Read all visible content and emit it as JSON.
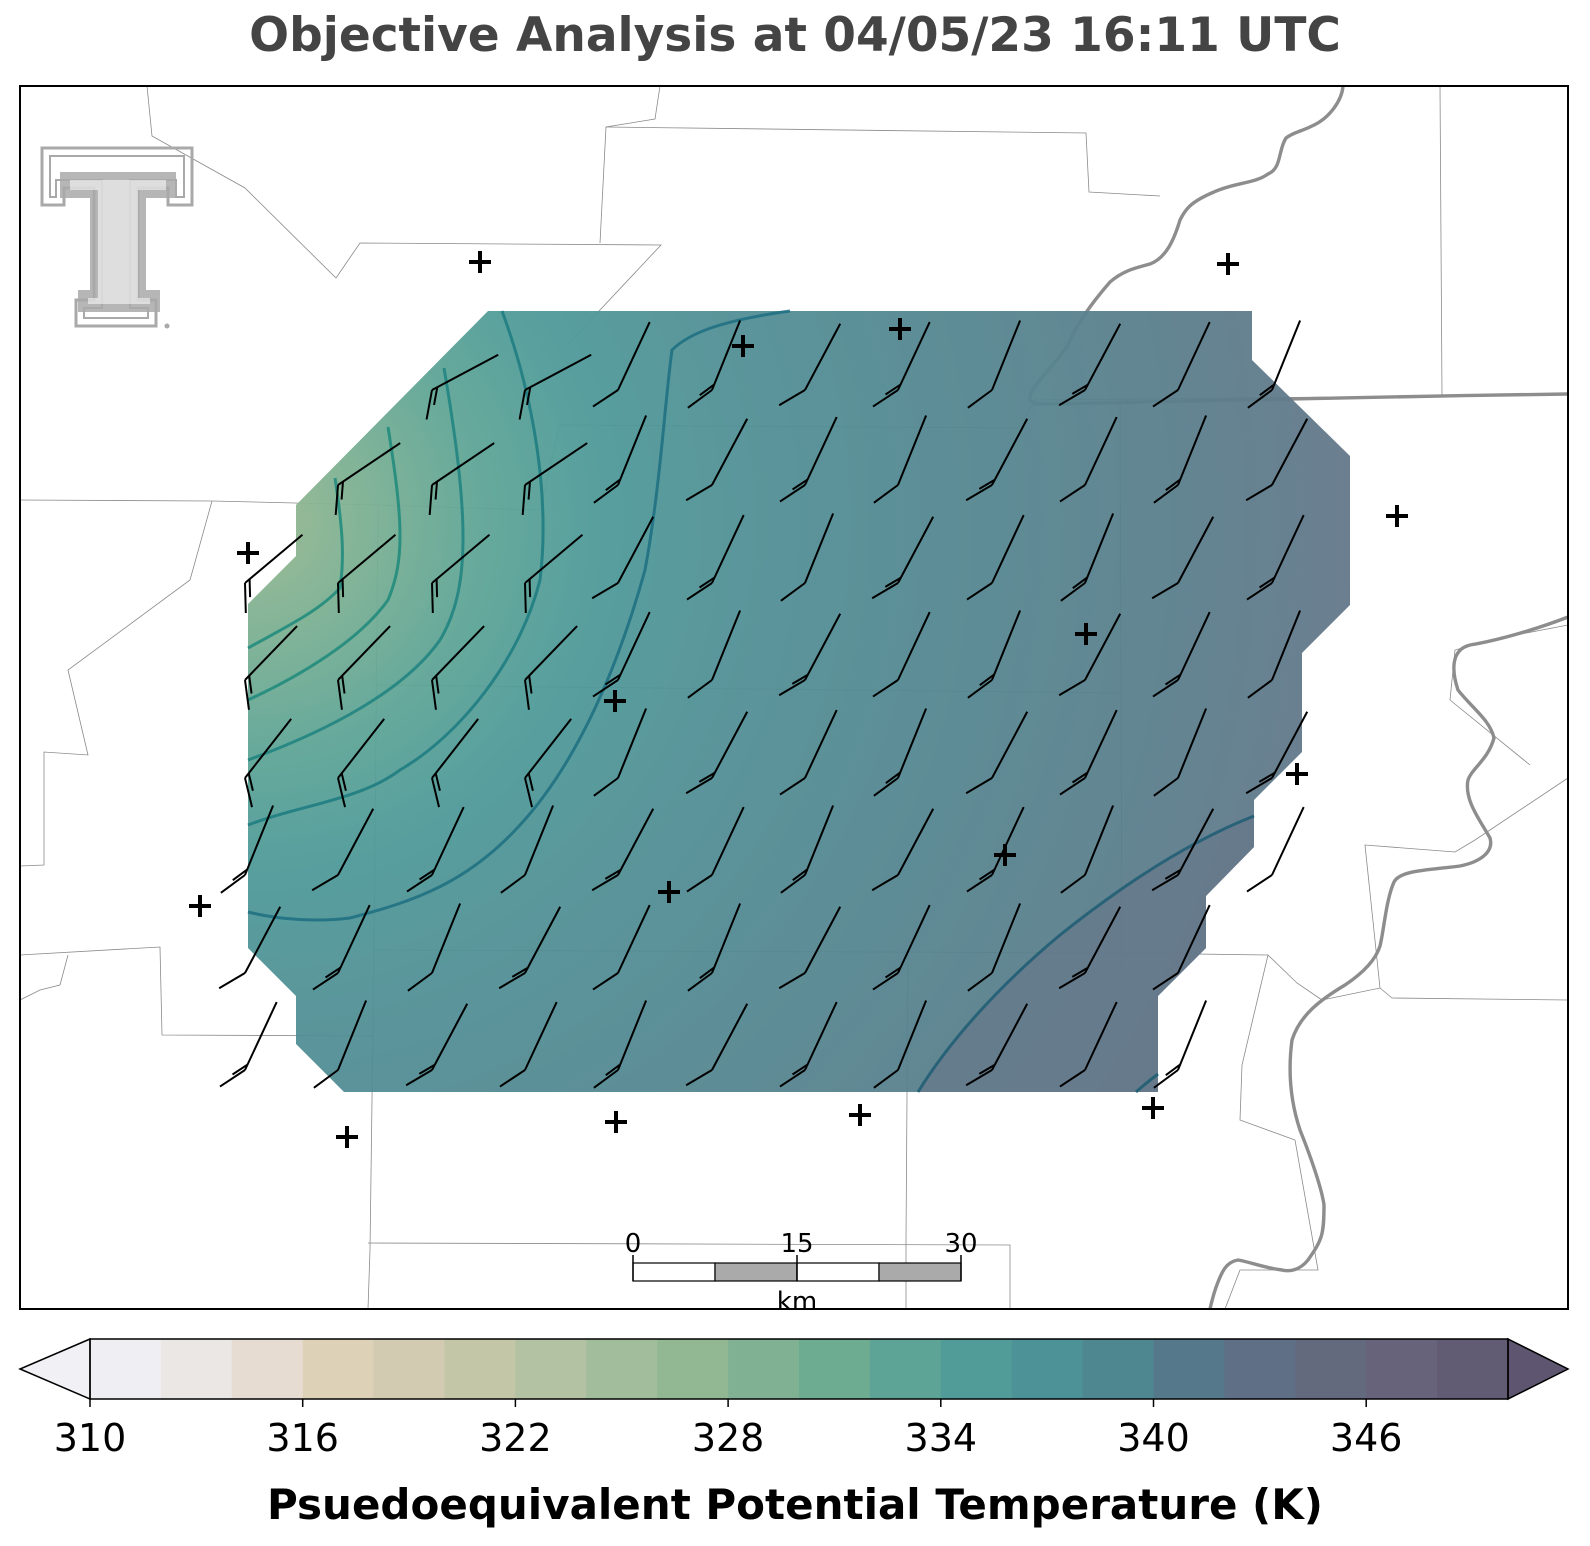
{
  "title": "Objective Analysis at 04/05/23 16:11 UTC",
  "map": {
    "variable": "Psuedoequivalent Potential Temperature",
    "units": "K",
    "logo": "texas-tech-double-t-logo",
    "station_marker": "plus",
    "wind_barbs": "northwesterly-to-southwesterly flow, ~10-15 kt"
  },
  "scale_bar": {
    "ticks": [
      "0",
      "15",
      "30"
    ],
    "units": "km"
  },
  "colorbar": {
    "min": 310,
    "max": 350,
    "step": 2,
    "extend": "both",
    "tick_labels": [
      "310",
      "316",
      "322",
      "328",
      "334",
      "340",
      "346"
    ],
    "label": "Psuedoequivalent Potential Temperature (K)",
    "colors": [
      "#efeef2",
      "#ebe7e5",
      "#e6dcd2",
      "#ddd1b8",
      "#d2cbb1",
      "#c3c6a7",
      "#b2c2a3",
      "#a2bd9b",
      "#92b893",
      "#80b193",
      "#6dac91",
      "#5ea496",
      "#519c98",
      "#4c9297",
      "#4e878f",
      "#55798a",
      "#5f6f86",
      "#646a7e",
      "#66637b",
      "#615b73"
    ],
    "under_color": "#f1f0f4",
    "over_color": "#5e5670"
  }
}
